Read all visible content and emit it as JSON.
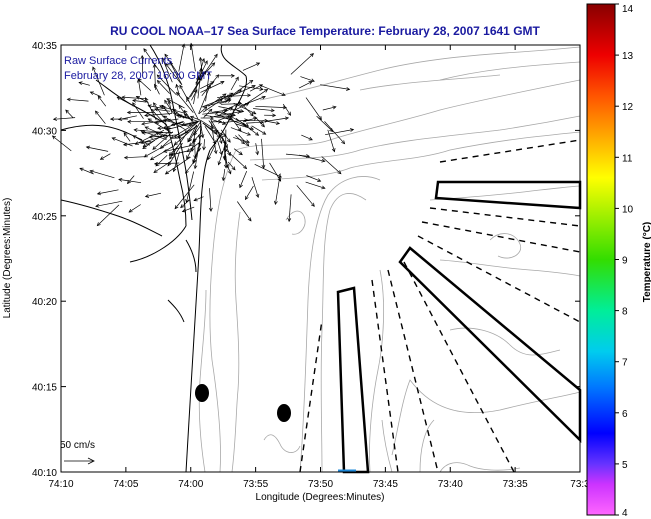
{
  "title": "RU COOL  NOAA–17  Sea Surface Temperature:  February 28, 2007 1641 GMT",
  "annotation": {
    "line1": "Raw Surface Currents",
    "line2": "February 28, 2007 16:00 GMT"
  },
  "axes": {
    "xlabel": "Longitude (Degrees:Minutes)",
    "ylabel": "Latitude (Degrees:Minutes)",
    "xticks": [
      "74:10",
      "74:05",
      "74:00",
      "73:55",
      "73:50",
      "73:45",
      "73:40",
      "73:35",
      "73:3"
    ],
    "yticks": [
      "40:35",
      "40:30",
      "40:25",
      "40:20",
      "40:15",
      "40:10"
    ]
  },
  "colorbar": {
    "label": "Temperature (°C)",
    "min": 4,
    "max": 14,
    "ticks": [
      "14",
      "13",
      "12",
      "11",
      "10",
      "9",
      "8",
      "7",
      "6",
      "5",
      "4"
    ]
  },
  "scale": {
    "label": "50 cm/s"
  },
  "colors": {
    "title": "#1a1aa0",
    "land": "#ffffff",
    "bathymetry": "#aaaaaa",
    "coast": "#000000"
  }
}
